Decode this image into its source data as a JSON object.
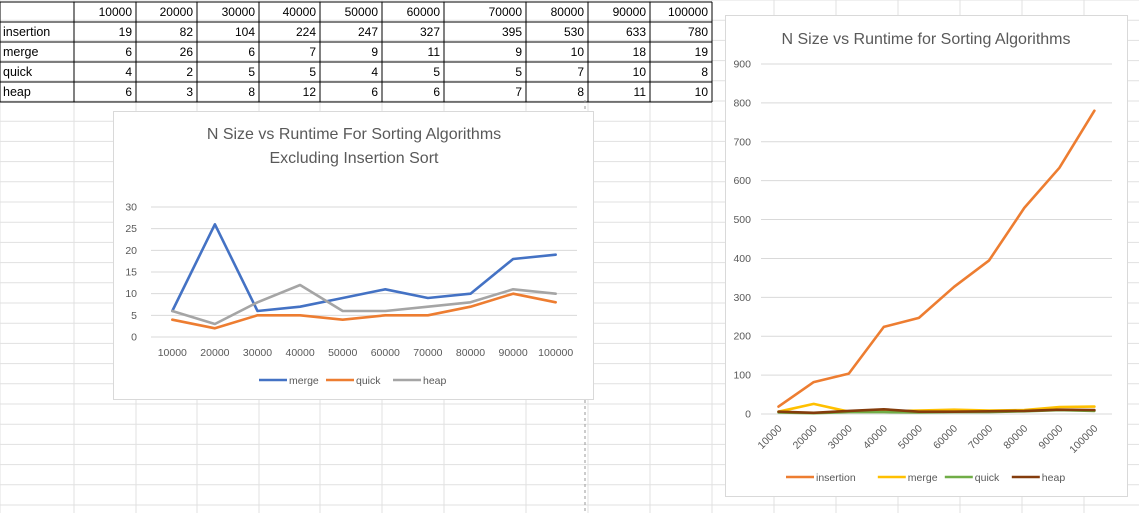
{
  "table": {
    "headers": [
      "10000",
      "20000",
      "30000",
      "40000",
      "50000",
      "60000",
      "70000",
      "80000",
      "90000",
      "100000"
    ],
    "rows": [
      {
        "label": "insertion",
        "values": [
          19,
          82,
          104,
          224,
          247,
          327,
          395,
          530,
          633,
          780
        ]
      },
      {
        "label": "merge",
        "values": [
          6,
          26,
          6,
          7,
          9,
          11,
          9,
          10,
          18,
          19
        ]
      },
      {
        "label": "quick",
        "values": [
          4,
          2,
          5,
          5,
          4,
          5,
          5,
          7,
          10,
          8
        ]
      },
      {
        "label": "heap",
        "values": [
          6,
          3,
          8,
          12,
          6,
          6,
          7,
          8,
          11,
          10
        ]
      }
    ]
  },
  "chart_data": [
    {
      "type": "line",
      "title": [
        "N Size vs Runtime For Sorting Algorithms",
        "Excluding Insertion Sort"
      ],
      "categories": [
        "10000",
        "20000",
        "30000",
        "40000",
        "50000",
        "60000",
        "70000",
        "80000",
        "90000",
        "100000"
      ],
      "ylim": [
        0,
        30
      ],
      "yticks": [
        0,
        5,
        10,
        15,
        20,
        25,
        30
      ],
      "grid": true,
      "legend": "bottom",
      "series": [
        {
          "name": "merge",
          "color": "#4472c4",
          "values": [
            6,
            26,
            6,
            7,
            9,
            11,
            9,
            10,
            18,
            19
          ]
        },
        {
          "name": "quick",
          "color": "#ed7d31",
          "values": [
            4,
            2,
            5,
            5,
            4,
            5,
            5,
            7,
            10,
            8
          ]
        },
        {
          "name": "heap",
          "color": "#a5a5a5",
          "values": [
            6,
            3,
            8,
            12,
            6,
            6,
            7,
            8,
            11,
            10
          ]
        }
      ]
    },
    {
      "type": "line",
      "title": [
        "N Size vs Runtime for Sorting Algorithms"
      ],
      "categories": [
        "10000",
        "20000",
        "30000",
        "40000",
        "50000",
        "60000",
        "70000",
        "80000",
        "90000",
        "100000"
      ],
      "ylim": [
        0,
        900
      ],
      "yticks": [
        0,
        100,
        200,
        300,
        400,
        500,
        600,
        700,
        800,
        900
      ],
      "grid": true,
      "legend": "bottom",
      "xlabel_rotation": "rotated",
      "series": [
        {
          "name": "insertion",
          "color": "#ed7d31",
          "values": [
            19,
            82,
            104,
            224,
            247,
            327,
            395,
            530,
            633,
            780
          ]
        },
        {
          "name": "merge",
          "color": "#ffc000",
          "values": [
            6,
            26,
            6,
            7,
            9,
            11,
            9,
            10,
            18,
            19
          ]
        },
        {
          "name": "quick",
          "color": "#70ad47",
          "values": [
            4,
            2,
            5,
            5,
            4,
            5,
            5,
            7,
            10,
            8
          ]
        },
        {
          "name": "heap",
          "color": "#843c0c",
          "values": [
            6,
            3,
            8,
            12,
            6,
            6,
            7,
            8,
            11,
            10
          ]
        }
      ]
    }
  ]
}
